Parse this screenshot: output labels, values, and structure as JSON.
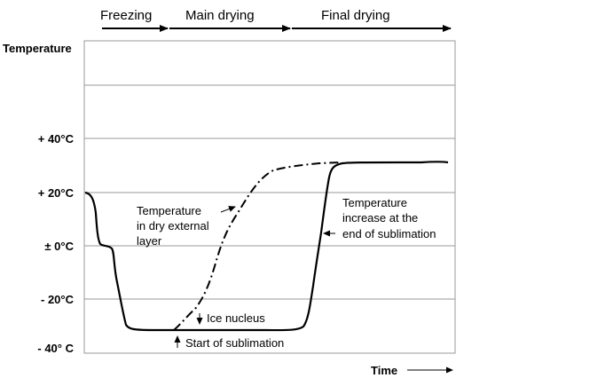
{
  "phases": [
    {
      "label": "Freezing"
    },
    {
      "label": "Main drying"
    },
    {
      "label": "Final drying"
    }
  ],
  "y_axis": {
    "title": "Temperature",
    "ticks": [
      "+ 40°C",
      "+ 20°C",
      "± 0°C",
      "- 20°C",
      "- 40° C"
    ]
  },
  "x_axis": {
    "title": "Time"
  },
  "annotations": {
    "dry_layer": [
      "Temperature",
      "in dry external",
      "layer"
    ],
    "ice_nucleus": "Ice nucleus",
    "start_sublimation": "Start of sublimation",
    "end_sublimation": [
      "Temperature",
      "increase at the",
      "end of sublimation"
    ]
  }
}
